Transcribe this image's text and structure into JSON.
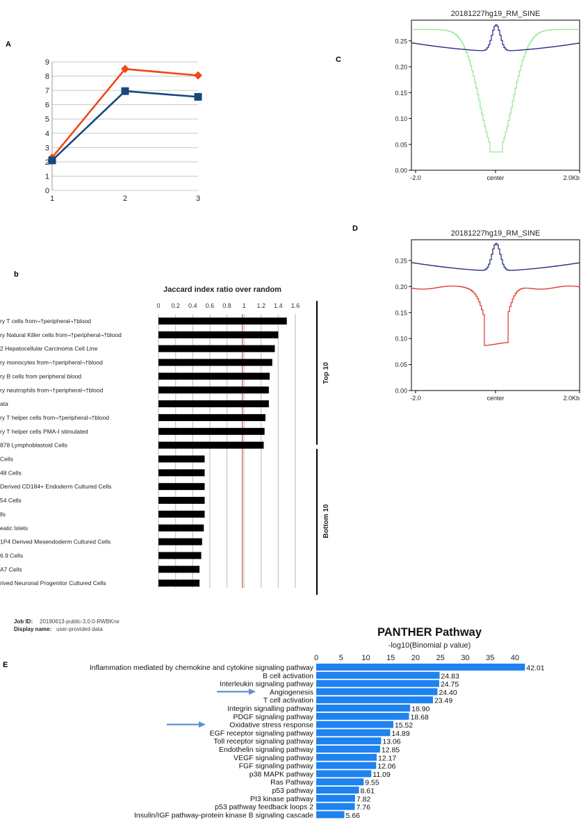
{
  "panels": {
    "a_label": "A",
    "b_label": "b",
    "c_label": "C",
    "d_label": "D",
    "e_label": "E"
  },
  "chart_data": [
    {
      "id": "A",
      "type": "line",
      "x": [
        1,
        2,
        3
      ],
      "xlim": [
        1,
        3
      ],
      "ylim": [
        0,
        9
      ],
      "yticks": [
        0,
        1,
        2,
        3,
        4,
        5,
        6,
        7,
        8,
        9
      ],
      "grid": true,
      "series": [
        {
          "values": [
            2.3,
            8.5,
            8.05
          ],
          "color": "#f04a16",
          "marker": "diamond"
        },
        {
          "values": [
            2.1,
            6.95,
            6.55
          ],
          "color": "#17477f",
          "marker": "square"
        }
      ]
    },
    {
      "id": "C",
      "type": "line",
      "title": "20181227hg19_RM_SINE",
      "xtick_labels": [
        "-2.0",
        "center",
        "2.0Kb"
      ],
      "ylim": [
        0,
        0.29
      ],
      "yticks": [
        "0.00",
        "0.05",
        "0.10",
        "0.15",
        "0.20",
        "0.25"
      ],
      "series": [
        {
          "color": "#8fe88a",
          "shape": "trough",
          "edge": 0.272,
          "min": 0.033,
          "width": 0.27,
          "flat": 0.07,
          "bump": 0
        },
        {
          "color": "#17237c",
          "shape": "peak",
          "edge": 0.246,
          "min": 0.23,
          "peak": 0.281
        }
      ]
    },
    {
      "id": "D",
      "type": "line",
      "title": "20181227hg19_RM_SINE",
      "xtick_labels": [
        "-2.0",
        "center",
        "2.0Kb"
      ],
      "ylim": [
        0,
        0.29
      ],
      "yticks": [
        "0.00",
        "0.05",
        "0.10",
        "0.15",
        "0.20",
        "0.25"
      ],
      "series": [
        {
          "color": "#e0302a",
          "shape": "trough",
          "edge": 0.198,
          "min": 0.08,
          "width": 0.16,
          "flat": 0.14,
          "bump": 0.003
        },
        {
          "color": "#17237c",
          "shape": "peak",
          "edge": 0.246,
          "min": 0.23,
          "peak": 0.283
        }
      ]
    },
    {
      "id": "b",
      "type": "bar",
      "orientation": "horizontal",
      "title": "Jaccard index ratio over random",
      "xticks": [
        "0",
        "0.2",
        "0.4",
        "0.6",
        "0.8",
        "1",
        "1.2",
        "1.4",
        "1.6"
      ],
      "xlim": [
        0,
        1.6
      ],
      "reference_line": 0.98,
      "groups": [
        "Top 10",
        "Bottom 10"
      ],
      "categories": [
        "ry T cells from¬†peripheral¬†blood",
        "ry Natural Killer cells from¬†peripheral¬†blood",
        "2 Hepatocellular Carcinoma Cell Line",
        "ry monocytes from¬†peripheral¬†blood",
        "ry B cells from peripheral blood",
        "ry neutrophils from¬†peripheral¬†blood",
        "ata",
        "ry T helper cells from¬†peripheral¬†blood",
        "ry T helper cells PMA-I stimulated",
        "878 Lymphoblastoid Cells",
        " Cells",
        "48 Cells",
        "Derived CD184+ Endoderm Cultured Cells",
        "54 Cells",
        "lls",
        "eatic Islets",
        "1P4 Derived Mesendoderm Cultured Cells",
        " 6.9 Cells",
        "A7 Cells",
        "rived Neuronal Progenitor Cultured Cells"
      ],
      "values": [
        1.5,
        1.4,
        1.36,
        1.33,
        1.3,
        1.29,
        1.29,
        1.25,
        1.24,
        1.23,
        0.54,
        0.54,
        0.54,
        0.54,
        0.54,
        0.53,
        0.51,
        0.5,
        0.48,
        0.48
      ],
      "footer": {
        "job_label": "Job ID:",
        "job_value": "20190613-public-3.0.0-RWBKrw",
        "display_label": "Display name:",
        "display_value": "user-provided data"
      }
    },
    {
      "id": "E",
      "type": "bar",
      "orientation": "horizontal",
      "title": "PANTHER Pathway",
      "xlabel": "-log10(Binomial p value)",
      "xticks": [
        0,
        5,
        10,
        15,
        20,
        25,
        30,
        35,
        40
      ],
      "xlim": [
        0,
        40
      ],
      "bar_color": "#1e82f0",
      "arrow_color": "#5b8fd4",
      "arrows_on": [
        "Angiogenesis",
        "Oxidative stress response"
      ],
      "categories": [
        "Inflammation mediated by chemokine and cytokine signaling pathway",
        "B cell activation",
        "Interleukin signaling pathway",
        "Angiogenesis",
        "T cell activation",
        "Integrin signalling pathway",
        "PDGF signaling pathway",
        "Oxidative stress response",
        "EGF receptor signaling pathway",
        "Toll receptor signaling pathway",
        "Endothelin signaling pathway",
        "VEGF signaling pathway",
        "FGF signaling pathway",
        "p38 MAPK pathway",
        "Ras Pathway",
        "p53 pathway",
        "PI3 kinase pathway",
        "p53 pathway feedback loops 2",
        "Insulin/IGF pathway-protein kinase B signaling cascade"
      ],
      "values": [
        42.01,
        24.83,
        24.75,
        24.4,
        23.49,
        18.9,
        18.68,
        15.52,
        14.89,
        13.06,
        12.85,
        12.17,
        12.06,
        11.09,
        9.55,
        8.61,
        7.82,
        7.76,
        5.66
      ],
      "value_labels": [
        "42.01",
        "24.83",
        "24.75",
        "24.40",
        "23.49",
        "18.90",
        "18.68",
        "15.52",
        "14.89",
        "13.06",
        "12.85",
        "12.17",
        "12.06",
        "11.09",
        "9.55",
        "8.61",
        "7.82",
        "7.76",
        "5.66"
      ]
    }
  ]
}
